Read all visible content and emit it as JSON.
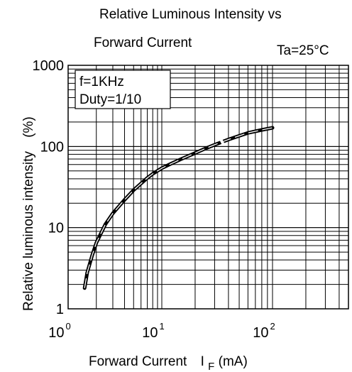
{
  "chart_data": {
    "type": "line",
    "title_line1": "Relative Luminous Intensity vs",
    "title_line2": "Forward Current",
    "condition": "Ta=25°C",
    "annotation_line1": "f=1KHz",
    "annotation_line2": "Duty=1/10",
    "ylabel": "Relative luminous intensity",
    "ylabel_unit": "(%)",
    "xlabel": "Forward Current",
    "xlabel_symbol": "I",
    "xlabel_subscript": "F",
    "xlabel_unit": "(mA)",
    "x_scale": "log",
    "y_scale": "log",
    "xlim": [
      1,
      400
    ],
    "ylim": [
      1,
      1000
    ],
    "grid": true,
    "y_ticks": [
      {
        "value": 1,
        "label": "1"
      },
      {
        "value": 10,
        "label": "10"
      },
      {
        "value": 100,
        "label": "100"
      },
      {
        "value": 1000,
        "label": "1000"
      }
    ],
    "x_ticks": [
      {
        "value": 1,
        "base": "10",
        "exp": "0"
      },
      {
        "value": 10,
        "base": "10",
        "exp": "1"
      },
      {
        "value": 100,
        "base": "10",
        "exp": "2"
      }
    ],
    "series": [
      {
        "x": [
          1.5,
          1.6,
          1.8,
          2,
          2.5,
          3,
          4,
          5,
          6,
          7,
          8,
          10,
          12,
          15,
          20,
          25,
          30,
          40,
          50,
          60,
          80,
          100
        ],
        "y": [
          1.8,
          2.8,
          4.5,
          6.5,
          11,
          15,
          22,
          29,
          35,
          41,
          46,
          54,
          61,
          70,
          83,
          95,
          105,
          122,
          135,
          147,
          160,
          170
        ]
      }
    ]
  }
}
